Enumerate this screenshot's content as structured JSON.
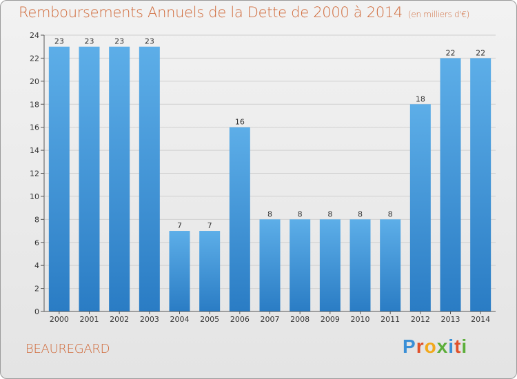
{
  "page": {
    "title": "Remboursements Annuels de la Dette de 2000 à 2014",
    "subtitle": "(en milliers d'€)",
    "commune": "BEAUREGARD",
    "brand": [
      "P",
      "r",
      "o",
      "x",
      "i",
      "t",
      "i"
    ]
  },
  "colors": {
    "bar_light": "#5daee8",
    "bar_dark": "#2a7cc4",
    "text": "#d06a3a"
  },
  "chart_data": {
    "type": "bar",
    "title": "Remboursements Annuels de la Dette de 2000 à 2014",
    "xlabel": "",
    "ylabel": "",
    "ylim": [
      0,
      24
    ],
    "yticks": [
      0,
      2,
      4,
      6,
      8,
      10,
      12,
      14,
      16,
      18,
      20,
      22,
      24
    ],
    "categories": [
      "2000",
      "2001",
      "2002",
      "2003",
      "2004",
      "2005",
      "2006",
      "2007",
      "2008",
      "2009",
      "2010",
      "2011",
      "2012",
      "2013",
      "2014"
    ],
    "values": [
      23,
      23,
      23,
      23,
      7,
      7,
      16,
      8,
      8,
      8,
      8,
      8,
      18,
      22,
      22
    ]
  }
}
